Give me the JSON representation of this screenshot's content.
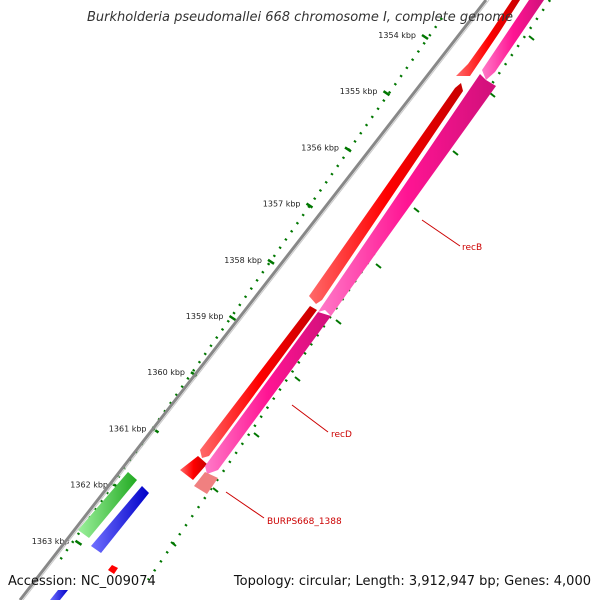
{
  "title": "Burkholderia pseudomallei 668 chromosome I, complete genome",
  "footer": {
    "accession": "Accession: NC_009074",
    "summary": "Topology: circular; Length: 3,912,947 bp; Genes: 4,000"
  },
  "ticks": [
    {
      "label": "1354 kbp"
    },
    {
      "label": "1355 kbp"
    },
    {
      "label": "1356 kbp"
    },
    {
      "label": "1357 kbp"
    },
    {
      "label": "1358 kbp"
    },
    {
      "label": "1359 kbp"
    },
    {
      "label": "1360 kbp"
    },
    {
      "label": "1361 kbp"
    },
    {
      "label": "1362 kbp"
    },
    {
      "label": "1363 kbp"
    }
  ],
  "genes": [
    {
      "name": "recB",
      "color": "#ff1493"
    },
    {
      "name": "recD",
      "color": "#ff1493"
    },
    {
      "name": "BURPS668_1388",
      "color": "#f08080"
    }
  ],
  "colors": {
    "backbone": "#808080",
    "forward_cds": "#ff0000",
    "reverse_cds": "#ff1493",
    "tick": "#007700",
    "gene_label": "#cc0000",
    "green_feature": "#33cc33",
    "blue_feature": "#0000ff"
  }
}
